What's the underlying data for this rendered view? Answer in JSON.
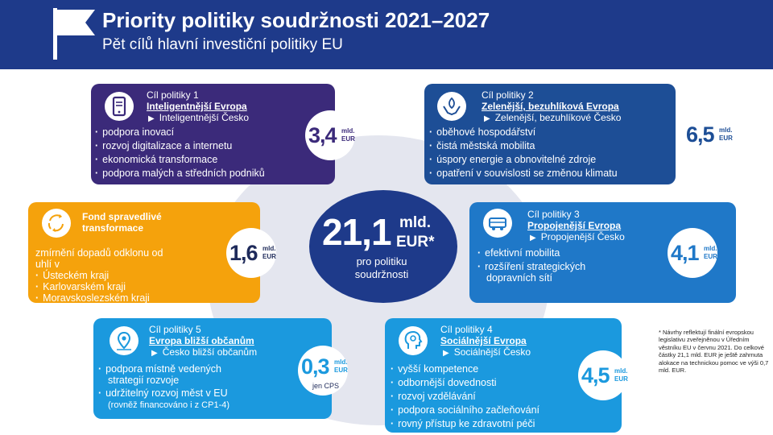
{
  "header": {
    "title": "Priority politiky soudržnosti 2021–2027",
    "subtitle": "Pět cílů hlavní investiční politiky EU",
    "flag_icon": "flag-icon"
  },
  "center": {
    "amount": "21,1",
    "unit_line1": "mld.",
    "unit_line2": "EUR*",
    "label_line1": "pro politiku",
    "label_line2": "soudržnosti"
  },
  "cards": {
    "goal1": {
      "goal": "Cíl politiky 1",
      "name": "Inteligentnější Evropa",
      "cz": "Inteligentnější Česko",
      "icon": "tablet-icon",
      "items": [
        "podpora inovací",
        "rozvoj digitalizace a internetu",
        "ekonomická transformace",
        "podpora malých a středních podniků"
      ],
      "amount": "3,4",
      "unit1": "mld.",
      "unit2": "EUR"
    },
    "goal2": {
      "goal": "Cíl politiky 2",
      "name": "Zelenější, bezuhlíková Evropa",
      "cz": "Zelenější, bezuhlíkové Česko",
      "icon": "hands-leaf-icon",
      "items": [
        "oběhové hospodářství",
        "čistá městská mobilita",
        "úspory energie a obnovitelné zdroje",
        "opatření v souvislosti se změnou klimatu"
      ],
      "amount": "6,5",
      "unit1": "mld.",
      "unit2": "EUR"
    },
    "fund": {
      "name_line1": "Fond spravedlivé",
      "name_line2": "transformace",
      "icon": "recycle-icon",
      "intro_line1": "zmírnění dopadů odklonu od",
      "intro_line2": "uhlí v",
      "items": [
        "Ústeckém kraji",
        "Karlovarském kraji",
        "Moravskoslezském kraji"
      ],
      "amount": "1,6",
      "unit1": "mld.",
      "unit2": "EUR"
    },
    "goal3": {
      "goal": "Cíl politiky 3",
      "name": "Propojenější Evropa",
      "cz": "Propojenější Česko",
      "icon": "bus-icon",
      "items": [
        "efektivní mobilita",
        "rozšíření strategických"
      ],
      "item_cont": "dopravních sítí",
      "amount": "4,1",
      "unit1": "mld.",
      "unit2": "EUR"
    },
    "goal5": {
      "goal": "Cíl politiky 5",
      "name": "Evropa bližší občanům",
      "cz": "Česko bližší občanům",
      "icon": "map-pin-icon",
      "items": [
        "podpora místně vedených",
        "udržitelný rozvoj měst v EU"
      ],
      "item_cont": "strategií rozvoje",
      "note": "(rovněž financováno i z CP1-4)",
      "amount": "0,3",
      "unit1": "mld.",
      "unit2": "EUR",
      "extra": "jen CPS"
    },
    "goal4": {
      "goal": "Cíl politiky 4",
      "name": "Sociálnější Evropa",
      "cz": "Sociálnější Česko",
      "icon": "head-icon",
      "items": [
        "vyšší kompetence",
        "odbornější dovednosti",
        "rozvoj vzdělávání",
        "podpora sociálního začleňování",
        "rovný přístup ke zdravotní péči"
      ],
      "amount": "4,5",
      "unit1": "mld.",
      "unit2": "EUR"
    }
  },
  "footnote": "* Návrhy reflektují finální evropskou legislativu zveřejněnou v Úředním věstníku EU v červnu 2021. Do celkové částky 21,1 mld. EUR je ještě zahrnuta alokace na technickou pomoc ve výši 0,7 mld. EUR.",
  "colors": {
    "header": "#1e3a8a",
    "goal1": "#3b2a7a",
    "goal2": "#1d4e96",
    "fund": "#f5a20c",
    "goal3": "#1f78c8",
    "goal5": "#1b99de",
    "goal4": "#1b99de"
  }
}
